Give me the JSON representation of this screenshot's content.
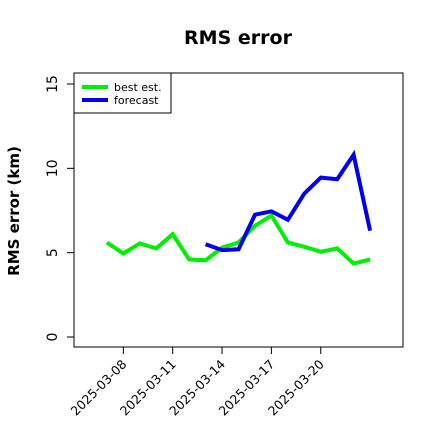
{
  "chart_data": {
    "type": "line",
    "title": "RMS error",
    "xlabel": "",
    "ylabel": "RMS error (km)",
    "ylim": [
      0,
      15
    ],
    "yticks": [
      0,
      5,
      10,
      15
    ],
    "xlim": [
      "2025-03-05",
      "2025-03-25"
    ],
    "xticks": [
      "2025-03-08",
      "2025-03-11",
      "2025-03-14",
      "2025-03-17",
      "2025-03-20"
    ],
    "grid": false,
    "legend_position": "top-left",
    "series": [
      {
        "name": "best est.",
        "color": "#00ee00",
        "x": [
          "2025-03-07",
          "2025-03-08",
          "2025-03-09",
          "2025-03-10",
          "2025-03-11",
          "2025-03-12",
          "2025-03-13",
          "2025-03-14",
          "2025-03-15",
          "2025-03-16",
          "2025-03-17",
          "2025-03-18",
          "2025-03-19",
          "2025-03-20",
          "2025-03-21",
          "2025-03-22",
          "2025-03-23"
        ],
        "values": [
          5.6,
          4.95,
          5.55,
          5.25,
          6.1,
          4.6,
          4.55,
          5.3,
          5.6,
          6.6,
          7.2,
          5.6,
          5.35,
          5.05,
          5.25,
          4.35,
          4.6
        ]
      },
      {
        "name": "forecast",
        "color": "#0000ee",
        "x": [
          "2025-03-13",
          "2025-03-14",
          "2025-03-15",
          "2025-03-16",
          "2025-03-17",
          "2025-03-18",
          "2025-03-19",
          "2025-03-20",
          "2025-03-21",
          "2025-03-22",
          "2025-03-23"
        ],
        "values": [
          5.5,
          5.15,
          5.2,
          7.25,
          7.45,
          6.95,
          8.5,
          9.45,
          9.35,
          10.8,
          6.3
        ]
      }
    ]
  }
}
